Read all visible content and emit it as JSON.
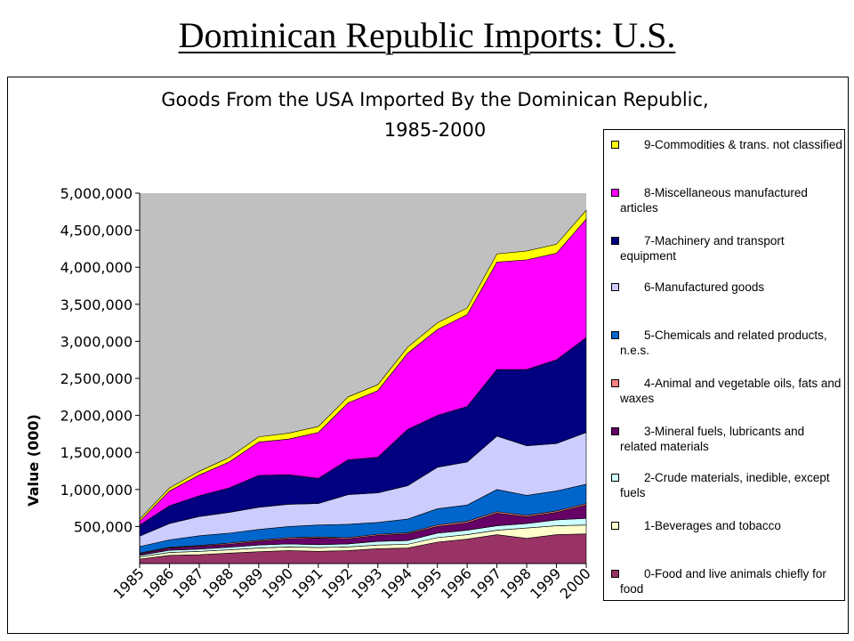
{
  "slide": {
    "title": "Dominican Republic Imports: U.S."
  },
  "chart_data": {
    "type": "area",
    "stacked": true,
    "title": "Goods From the USA Imported By the Dominican Republic,",
    "subtitle": "1985-2000",
    "xlabel": "",
    "ylabel": "Value (000)",
    "ylim": [
      0,
      5000000
    ],
    "yticks": [
      "500,000",
      "1,000,000",
      "1,500,000",
      "2,000,000",
      "2,500,000",
      "3,000,000",
      "3,500,000",
      "4,000,000",
      "4,500,000",
      "5,000,000"
    ],
    "x": [
      "1985",
      "1986",
      "1987",
      "1988",
      "1989",
      "1990",
      "1991",
      "1992",
      "1993",
      "1994",
      "1995",
      "1996",
      "1997",
      "1998",
      "1999",
      "2000"
    ],
    "grid": false,
    "plot_background": "#c0c0c0",
    "legend_position": "right",
    "series": [
      {
        "name": "0-Food and live animals chiefly for food",
        "color": "#993366",
        "values": [
          60000,
          110000,
          120000,
          140000,
          160000,
          175000,
          165000,
          175000,
          200000,
          210000,
          290000,
          330000,
          390000,
          340000,
          390000,
          400000
        ]
      },
      {
        "name": "1-Beverages and tobacco",
        "color": "#ffffcc",
        "values": [
          30000,
          40000,
          45000,
          45000,
          50000,
          50000,
          50000,
          50000,
          50000,
          50000,
          60000,
          60000,
          60000,
          140000,
          120000,
          120000
        ]
      },
      {
        "name": "2-Crude materials, inedible, except fuels",
        "color": "#ccffff",
        "values": [
          20000,
          30000,
          30000,
          35000,
          40000,
          40000,
          40000,
          40000,
          50000,
          50000,
          60000,
          60000,
          60000,
          60000,
          80000,
          90000
        ]
      },
      {
        "name": "3-Mineral fuels, lubricants and related materials",
        "color": "#660066",
        "values": [
          20000,
          30000,
          40000,
          40000,
          50000,
          70000,
          90000,
          70000,
          80000,
          90000,
          90000,
          100000,
          170000,
          90000,
          100000,
          180000
        ]
      },
      {
        "name": "4-Animal and vegetable oils, fats and waxes",
        "color": "#ff8080",
        "values": [
          10000,
          10000,
          10000,
          15000,
          15000,
          15000,
          15000,
          15000,
          15000,
          15000,
          20000,
          20000,
          20000,
          20000,
          20000,
          20000
        ]
      },
      {
        "name": "5-Chemicals and related products, n.e.s.",
        "color": "#0066cc",
        "values": [
          90000,
          100000,
          130000,
          135000,
          145000,
          150000,
          160000,
          180000,
          160000,
          185000,
          220000,
          220000,
          300000,
          270000,
          270000,
          260000
        ]
      },
      {
        "name": "6-Manufactured goods",
        "color": "#ccccff",
        "values": [
          140000,
          220000,
          260000,
          280000,
          300000,
          300000,
          290000,
          400000,
          400000,
          450000,
          560000,
          580000,
          720000,
          670000,
          640000,
          700000
        ]
      },
      {
        "name": "7-Machinery and transport equipment",
        "color": "#000080",
        "values": [
          150000,
          240000,
          280000,
          330000,
          430000,
          400000,
          340000,
          470000,
          480000,
          760000,
          700000,
          750000,
          900000,
          1030000,
          1130000,
          1280000
        ]
      },
      {
        "name": "8-Miscellaneous manufactured articles",
        "color": "#ff00ff",
        "values": [
          50000,
          200000,
          280000,
          350000,
          450000,
          480000,
          620000,
          770000,
          900000,
          1030000,
          1160000,
          1240000,
          1450000,
          1480000,
          1440000,
          1600000
        ]
      },
      {
        "name": "9-Commodities & trans. not classified",
        "color": "#ffff00",
        "values": [
          30000,
          40000,
          50000,
          60000,
          70000,
          80000,
          80000,
          80000,
          80000,
          80000,
          90000,
          90000,
          110000,
          120000,
          120000,
          120000
        ]
      }
    ]
  }
}
